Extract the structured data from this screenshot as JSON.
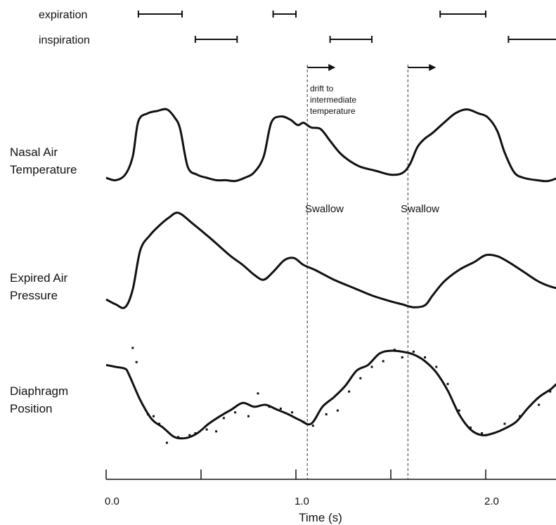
{
  "chart_data": {
    "type": "line",
    "xlabel": "Time (s)",
    "xlim": [
      0.0,
      2.48
    ],
    "x_ticks": [
      {
        "value": 0.0,
        "label": "0.0"
      },
      {
        "value": 0.5,
        "label": ""
      },
      {
        "value": 1.0,
        "label": "1.0"
      },
      {
        "value": 1.5,
        "label": ""
      },
      {
        "value": 2.0,
        "label": "2.0"
      }
    ],
    "phases": [
      {
        "name": "expiration",
        "intervals": [
          [
            0.17,
            0.4
          ],
          [
            0.88,
            1.0
          ],
          [
            1.76,
            2.0
          ]
        ]
      },
      {
        "name": "inspiration",
        "intervals": [
          [
            0.47,
            0.69
          ],
          [
            1.18,
            1.4
          ],
          [
            2.12,
            2.39
          ]
        ]
      }
    ],
    "swallows": [
      {
        "time": 1.06,
        "label": "Swallow"
      },
      {
        "time": 1.59,
        "label": "Swallow"
      }
    ],
    "drift_arrows": [
      {
        "start": 1.06
      },
      {
        "start": 1.59
      }
    ],
    "annotation": [
      "drift to",
      "intermediate",
      "temperature"
    ],
    "series": [
      {
        "name": "Nasal Air Temperature",
        "label_lines": [
          "Nasal Air",
          "Temperature"
        ],
        "points": [
          [
            0.0,
            0.08
          ],
          [
            0.05,
            0.05
          ],
          [
            0.1,
            0.12
          ],
          [
            0.14,
            0.35
          ],
          [
            0.17,
            0.8
          ],
          [
            0.22,
            0.9
          ],
          [
            0.27,
            0.93
          ],
          [
            0.32,
            0.95
          ],
          [
            0.36,
            0.85
          ],
          [
            0.39,
            0.7
          ],
          [
            0.43,
            0.22
          ],
          [
            0.48,
            0.12
          ],
          [
            0.53,
            0.08
          ],
          [
            0.58,
            0.05
          ],
          [
            0.63,
            0.05
          ],
          [
            0.68,
            0.04
          ],
          [
            0.73,
            0.08
          ],
          [
            0.78,
            0.15
          ],
          [
            0.83,
            0.35
          ],
          [
            0.87,
            0.78
          ],
          [
            0.92,
            0.86
          ],
          [
            0.97,
            0.82
          ],
          [
            1.01,
            0.75
          ],
          [
            1.04,
            0.78
          ],
          [
            1.08,
            0.72
          ],
          [
            1.13,
            0.7
          ],
          [
            1.18,
            0.55
          ],
          [
            1.23,
            0.4
          ],
          [
            1.28,
            0.3
          ],
          [
            1.34,
            0.22
          ],
          [
            1.42,
            0.17
          ],
          [
            1.5,
            0.12
          ],
          [
            1.56,
            0.14
          ],
          [
            1.6,
            0.25
          ],
          [
            1.64,
            0.47
          ],
          [
            1.68,
            0.58
          ],
          [
            1.72,
            0.65
          ],
          [
            1.78,
            0.78
          ],
          [
            1.84,
            0.9
          ],
          [
            1.9,
            0.95
          ],
          [
            1.96,
            0.9
          ],
          [
            2.01,
            0.85
          ],
          [
            2.06,
            0.68
          ],
          [
            2.1,
            0.4
          ],
          [
            2.15,
            0.15
          ],
          [
            2.2,
            0.08
          ],
          [
            2.27,
            0.05
          ],
          [
            2.33,
            0.04
          ],
          [
            2.4,
            0.1
          ],
          [
            2.45,
            0.15
          ],
          [
            2.48,
            0.35
          ]
        ]
      },
      {
        "name": "Expired Air Pressure",
        "label_lines": [
          "Expired Air",
          "Pressure"
        ],
        "points": [
          [
            0.0,
            0.1
          ],
          [
            0.05,
            0.05
          ],
          [
            0.1,
            0.02
          ],
          [
            0.14,
            0.2
          ],
          [
            0.18,
            0.6
          ],
          [
            0.23,
            0.75
          ],
          [
            0.28,
            0.85
          ],
          [
            0.33,
            0.93
          ],
          [
            0.38,
            0.98
          ],
          [
            0.45,
            0.88
          ],
          [
            0.55,
            0.72
          ],
          [
            0.65,
            0.55
          ],
          [
            0.72,
            0.45
          ],
          [
            0.78,
            0.35
          ],
          [
            0.83,
            0.3
          ],
          [
            0.88,
            0.38
          ],
          [
            0.94,
            0.5
          ],
          [
            0.99,
            0.52
          ],
          [
            1.04,
            0.45
          ],
          [
            1.1,
            0.4
          ],
          [
            1.2,
            0.3
          ],
          [
            1.3,
            0.22
          ],
          [
            1.4,
            0.14
          ],
          [
            1.5,
            0.08
          ],
          [
            1.56,
            0.05
          ],
          [
            1.62,
            0.02
          ],
          [
            1.68,
            0.04
          ],
          [
            1.72,
            0.14
          ],
          [
            1.78,
            0.28
          ],
          [
            1.86,
            0.4
          ],
          [
            1.94,
            0.48
          ],
          [
            2.0,
            0.55
          ],
          [
            2.06,
            0.54
          ],
          [
            2.12,
            0.48
          ],
          [
            2.2,
            0.38
          ],
          [
            2.28,
            0.28
          ],
          [
            2.36,
            0.22
          ],
          [
            2.44,
            0.2
          ],
          [
            2.48,
            0.18
          ]
        ]
      },
      {
        "name": "Diaphragm Position",
        "label_lines": [
          "Diaphragm",
          "Position"
        ],
        "points": [
          [
            0.0,
            0.82
          ],
          [
            0.05,
            0.8
          ],
          [
            0.1,
            0.78
          ],
          [
            0.12,
            0.72
          ],
          [
            0.18,
            0.45
          ],
          [
            0.24,
            0.25
          ],
          [
            0.3,
            0.16
          ],
          [
            0.36,
            0.06
          ],
          [
            0.42,
            0.05
          ],
          [
            0.48,
            0.1
          ],
          [
            0.54,
            0.2
          ],
          [
            0.6,
            0.28
          ],
          [
            0.66,
            0.35
          ],
          [
            0.72,
            0.42
          ],
          [
            0.78,
            0.38
          ],
          [
            0.84,
            0.4
          ],
          [
            0.9,
            0.35
          ],
          [
            0.96,
            0.3
          ],
          [
            1.02,
            0.24
          ],
          [
            1.08,
            0.2
          ],
          [
            1.14,
            0.38
          ],
          [
            1.2,
            0.48
          ],
          [
            1.26,
            0.6
          ],
          [
            1.32,
            0.76
          ],
          [
            1.38,
            0.82
          ],
          [
            1.44,
            0.94
          ],
          [
            1.5,
            0.97
          ],
          [
            1.56,
            0.96
          ],
          [
            1.62,
            0.93
          ],
          [
            1.68,
            0.86
          ],
          [
            1.74,
            0.74
          ],
          [
            1.8,
            0.55
          ],
          [
            1.86,
            0.3
          ],
          [
            1.92,
            0.14
          ],
          [
            1.98,
            0.08
          ],
          [
            2.04,
            0.1
          ],
          [
            2.1,
            0.15
          ],
          [
            2.16,
            0.22
          ],
          [
            2.22,
            0.36
          ],
          [
            2.28,
            0.48
          ],
          [
            2.34,
            0.56
          ],
          [
            2.4,
            0.64
          ],
          [
            2.45,
            0.48
          ],
          [
            2.48,
            0.42
          ]
        ],
        "markers": [
          [
            0.14,
            1.0
          ],
          [
            0.16,
            0.85
          ],
          [
            0.22,
            0.3
          ],
          [
            0.25,
            0.28
          ],
          [
            0.28,
            0.2
          ],
          [
            0.32,
            0.0
          ],
          [
            0.38,
            0.06
          ],
          [
            0.44,
            0.08
          ],
          [
            0.47,
            0.1
          ],
          [
            0.53,
            0.14
          ],
          [
            0.58,
            0.12
          ],
          [
            0.62,
            0.26
          ],
          [
            0.68,
            0.32
          ],
          [
            0.75,
            0.28
          ],
          [
            0.8,
            0.52
          ],
          [
            0.86,
            0.38
          ],
          [
            0.92,
            0.36
          ],
          [
            0.98,
            0.32
          ],
          [
            1.04,
            0.22
          ],
          [
            1.09,
            0.18
          ],
          [
            1.16,
            0.3
          ],
          [
            1.22,
            0.34
          ],
          [
            1.28,
            0.54
          ],
          [
            1.34,
            0.68
          ],
          [
            1.4,
            0.8
          ],
          [
            1.46,
            0.86
          ],
          [
            1.52,
            0.98
          ],
          [
            1.56,
            0.9
          ],
          [
            1.62,
            0.96
          ],
          [
            1.68,
            0.9
          ],
          [
            1.74,
            0.8
          ],
          [
            1.8,
            0.62
          ],
          [
            1.86,
            0.34
          ],
          [
            1.92,
            0.16
          ],
          [
            1.98,
            0.1
          ],
          [
            2.1,
            0.2
          ],
          [
            2.18,
            0.28
          ],
          [
            2.28,
            0.4
          ],
          [
            2.34,
            0.54
          ],
          [
            2.4,
            0.66
          ],
          [
            2.46,
            0.66
          ]
        ]
      }
    ]
  }
}
